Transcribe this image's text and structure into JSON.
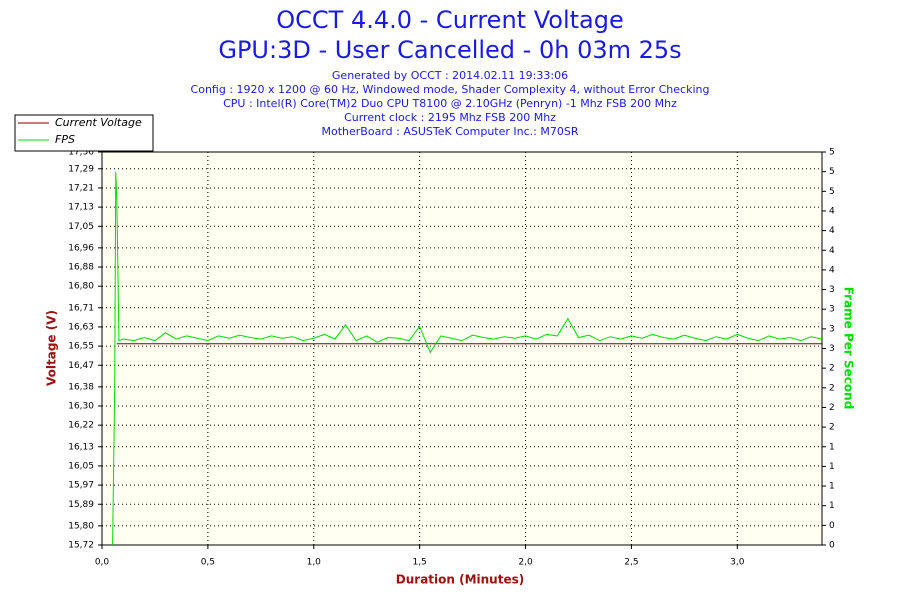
{
  "chart_data": {
    "type": "line",
    "title": [
      "OCCT 4.4.0 - Current Voltage",
      "GPU:3D - User Cancelled - 0h 03m 25s"
    ],
    "subtitle": [
      "Generated by OCCT : 2014.02.11 19:33:06",
      "Config : 1920 x 1200 @ 60 Hz, Windowed mode, Shader Complexity 4, without Error Checking",
      "CPU : Intel(R) Core(TM)2 Duo CPU T8100 @ 2.10GHz (Penryn) -1 Mhz FSB 200 Mhz",
      "Current clock : 2195 Mhz FSB 200 Mhz",
      "MotherBoard : ASUSTeK Computer Inc.: M70SR"
    ],
    "x_label": "Duration (Minutes)",
    "y_label": "Voltage (V)",
    "y2_label": "Frame Per Second",
    "legend": "upper left",
    "grid": true,
    "xlim": [
      0,
      3.4
    ],
    "xticks": [
      {
        "value": 0,
        "label": "0,0"
      },
      {
        "value": 0.5,
        "label": "0,5"
      },
      {
        "value": 1.0,
        "label": "1,0"
      },
      {
        "value": 1.5,
        "label": "1,5"
      },
      {
        "value": 2.0,
        "label": "2,0"
      },
      {
        "value": 2.5,
        "label": "2,5"
      },
      {
        "value": 3.0,
        "label": "3,0"
      }
    ],
    "ylim": [
      15.72,
      17.36
    ],
    "yticks": [
      {
        "value": 15.72,
        "label": "15,72"
      },
      {
        "value": 15.8,
        "label": "15,80"
      },
      {
        "value": 15.89,
        "label": "15,89"
      },
      {
        "value": 15.97,
        "label": "15,97"
      },
      {
        "value": 16.05,
        "label": "16,05"
      },
      {
        "value": 16.13,
        "label": "16,13"
      },
      {
        "value": 16.22,
        "label": "16,22"
      },
      {
        "value": 16.3,
        "label": "16,30"
      },
      {
        "value": 16.38,
        "label": "16,38"
      },
      {
        "value": 16.47,
        "label": "16,47"
      },
      {
        "value": 16.55,
        "label": "16,55"
      },
      {
        "value": 16.63,
        "label": "16,63"
      },
      {
        "value": 16.71,
        "label": "16,71"
      },
      {
        "value": 16.8,
        "label": "16,80"
      },
      {
        "value": 16.88,
        "label": "16,88"
      },
      {
        "value": 16.96,
        "label": "16,96"
      },
      {
        "value": 17.05,
        "label": "17,05"
      },
      {
        "value": 17.13,
        "label": "17,13"
      },
      {
        "value": 17.21,
        "label": "17,21"
      },
      {
        "value": 17.29,
        "label": "17,29"
      },
      {
        "value": 17.36,
        "label": "17,36"
      }
    ],
    "y2lim": [
      0,
      5
    ],
    "y2ticks": [
      0,
      {
        "value": 0.25,
        "label": "0"
      },
      {
        "value": 0.5,
        "label": "1"
      },
      {
        "value": 0.75,
        "label": "1"
      },
      1,
      {
        "value": 1.25,
        "label": "1"
      },
      {
        "value": 1.5,
        "label": "2"
      },
      {
        "value": 1.75,
        "label": "2"
      },
      2,
      {
        "value": 2.25,
        "label": "2"
      },
      {
        "value": 2.5,
        "label": "3"
      },
      {
        "value": 2.75,
        "label": "3"
      },
      3,
      {
        "value": 3.25,
        "label": "3"
      },
      {
        "value": 3.5,
        "label": "4"
      },
      {
        "value": 3.75,
        "label": "4"
      },
      4,
      {
        "value": 4.25,
        "label": "4"
      },
      {
        "value": 4.5,
        "label": "5"
      },
      {
        "value": 4.75,
        "label": "5"
      },
      5
    ],
    "series": [
      {
        "name": "Current Voltage",
        "color": "#800000",
        "x": [
          0.07,
          3.4
        ],
        "values": [
          16.56,
          16.56
        ]
      },
      {
        "name": "FPS",
        "color": "#00dd00",
        "axis": "y2",
        "x": [
          0.05,
          0.06,
          0.065,
          0.07,
          0.075,
          0.08,
          0.1,
          0.15,
          0.2,
          0.25,
          0.3,
          0.35,
          0.4,
          0.45,
          0.5,
          0.55,
          0.6,
          0.65,
          0.7,
          0.75,
          0.8,
          0.85,
          0.9,
          0.95,
          1.0,
          1.05,
          1.1,
          1.15,
          1.2,
          1.25,
          1.3,
          1.35,
          1.4,
          1.45,
          1.5,
          1.55,
          1.6,
          1.65,
          1.7,
          1.75,
          1.8,
          1.85,
          1.9,
          1.95,
          2.0,
          2.05,
          2.1,
          2.15,
          2.2,
          2.25,
          2.3,
          2.35,
          2.4,
          2.45,
          2.5,
          2.55,
          2.6,
          2.65,
          2.7,
          2.75,
          2.8,
          2.85,
          2.9,
          2.95,
          3.0,
          3.05,
          3.1,
          3.15,
          3.2,
          3.25,
          3.3,
          3.35,
          3.4
        ],
        "values": [
          0,
          2.0,
          4.75,
          4.4,
          3.5,
          2.6,
          2.62,
          2.6,
          2.64,
          2.6,
          2.7,
          2.62,
          2.66,
          2.63,
          2.6,
          2.66,
          2.63,
          2.67,
          2.64,
          2.62,
          2.66,
          2.63,
          2.65,
          2.6,
          2.63,
          2.68,
          2.62,
          2.8,
          2.6,
          2.66,
          2.58,
          2.64,
          2.63,
          2.6,
          2.78,
          2.45,
          2.66,
          2.63,
          2.6,
          2.67,
          2.64,
          2.62,
          2.65,
          2.63,
          2.66,
          2.62,
          2.68,
          2.66,
          2.88,
          2.64,
          2.67,
          2.6,
          2.65,
          2.62,
          2.66,
          2.63,
          2.68,
          2.64,
          2.62,
          2.67,
          2.63,
          2.6,
          2.65,
          2.62,
          2.68,
          2.63,
          2.6,
          2.66,
          2.62,
          2.64,
          2.6,
          2.65,
          2.62
        ]
      }
    ]
  }
}
